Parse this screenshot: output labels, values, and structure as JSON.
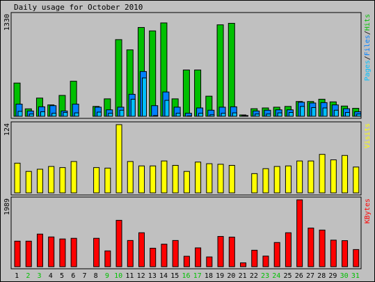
{
  "title": "Daily usage for October 2010",
  "colors": {
    "background": "#c0c0c0",
    "hits": "#00c000",
    "files": "#0080ff",
    "pages": "#00c0ff",
    "visits": "#ffff00",
    "kbytes": "#ff0000",
    "weekend": "#00c000",
    "weekday": "#000000"
  },
  "chart_data": [
    {
      "type": "bar",
      "panel": "usage",
      "ymax_label": "1330",
      "ylim": [
        0,
        1330
      ],
      "categories": [
        "1",
        "2",
        "3",
        "4",
        "5",
        "6",
        "7",
        "8",
        "9",
        "10",
        "11",
        "12",
        "13",
        "14",
        "15",
        "16",
        "17",
        "18",
        "19",
        "20",
        "21",
        "22",
        "23",
        "24",
        "25",
        "26",
        "27",
        "28",
        "29",
        "30",
        "31"
      ],
      "legend": [
        {
          "text": "Pages",
          "color": "#00c0ff"
        },
        {
          "text": "/",
          "color": "#000000"
        },
        {
          "text": "Files",
          "color": "#0080ff"
        },
        {
          "text": "/",
          "color": "#000000"
        },
        {
          "text": "Hits",
          "color": "#00c000"
        }
      ],
      "series": [
        {
          "name": "Hits",
          "values": [
            438,
            98,
            240,
            150,
            275,
            462,
            0,
            130,
            230,
            1010,
            875,
            1170,
            1125,
            1230,
            230,
            610,
            610,
            265,
            1205,
            1225,
            18,
            100,
            110,
            120,
            130,
            195,
            195,
            225,
            190,
            135,
            105
          ]
        },
        {
          "name": "Files",
          "values": [
            160,
            70,
            125,
            140,
            70,
            160,
            0,
            120,
            85,
            120,
            290,
            590,
            140,
            320,
            120,
            40,
            110,
            80,
            120,
            125,
            10,
            70,
            80,
            85,
            85,
            185,
            175,
            180,
            150,
            100,
            60
          ]
        },
        {
          "name": "Pages",
          "values": [
            65,
            30,
            60,
            40,
            50,
            45,
            0,
            55,
            40,
            80,
            225,
            505,
            10,
            210,
            40,
            5,
            40,
            20,
            40,
            45,
            5,
            30,
            30,
            45,
            50,
            130,
            115,
            110,
            80,
            50,
            30
          ]
        }
      ]
    },
    {
      "type": "bar",
      "panel": "visits",
      "ymax_label": "124",
      "ylim": [
        0,
        124
      ],
      "categories": [
        "1",
        "2",
        "3",
        "4",
        "5",
        "6",
        "7",
        "8",
        "9",
        "10",
        "11",
        "12",
        "13",
        "14",
        "15",
        "16",
        "17",
        "18",
        "19",
        "20",
        "21",
        "22",
        "23",
        "24",
        "25",
        "26",
        "27",
        "28",
        "29",
        "30",
        "31"
      ],
      "legend": [
        {
          "text": "Visits",
          "color": "#ffff00"
        }
      ],
      "series": [
        {
          "name": "Visits",
          "values": [
            54,
            39,
            43,
            48,
            46,
            57,
            0,
            46,
            45,
            124,
            57,
            49,
            49,
            58,
            50,
            39,
            56,
            53,
            52,
            50,
            0,
            35,
            44,
            48,
            49,
            58,
            58,
            70,
            60,
            68,
            47
          ]
        }
      ]
    },
    {
      "type": "bar",
      "panel": "kbytes",
      "ymax_label": "1989",
      "ylim": [
        0,
        1989
      ],
      "categories": [
        "1",
        "2",
        "3",
        "4",
        "5",
        "6",
        "7",
        "8",
        "9",
        "10",
        "11",
        "12",
        "13",
        "14",
        "15",
        "16",
        "17",
        "18",
        "19",
        "20",
        "21",
        "22",
        "23",
        "24",
        "25",
        "26",
        "27",
        "28",
        "29",
        "30",
        "31"
      ],
      "legend": [
        {
          "text": "KBytes",
          "color": "#ff0000"
        }
      ],
      "series": [
        {
          "name": "KBytes",
          "values": [
            760,
            760,
            970,
            885,
            825,
            845,
            0,
            845,
            470,
            1380,
            780,
            1010,
            550,
            670,
            780,
            310,
            560,
            290,
            900,
            880,
            115,
            490,
            315,
            720,
            1010,
            1989,
            1150,
            1090,
            790,
            775,
            510
          ]
        }
      ]
    }
  ],
  "weekend_days": [
    2,
    3,
    9,
    10,
    16,
    17,
    23,
    24,
    30,
    31
  ]
}
